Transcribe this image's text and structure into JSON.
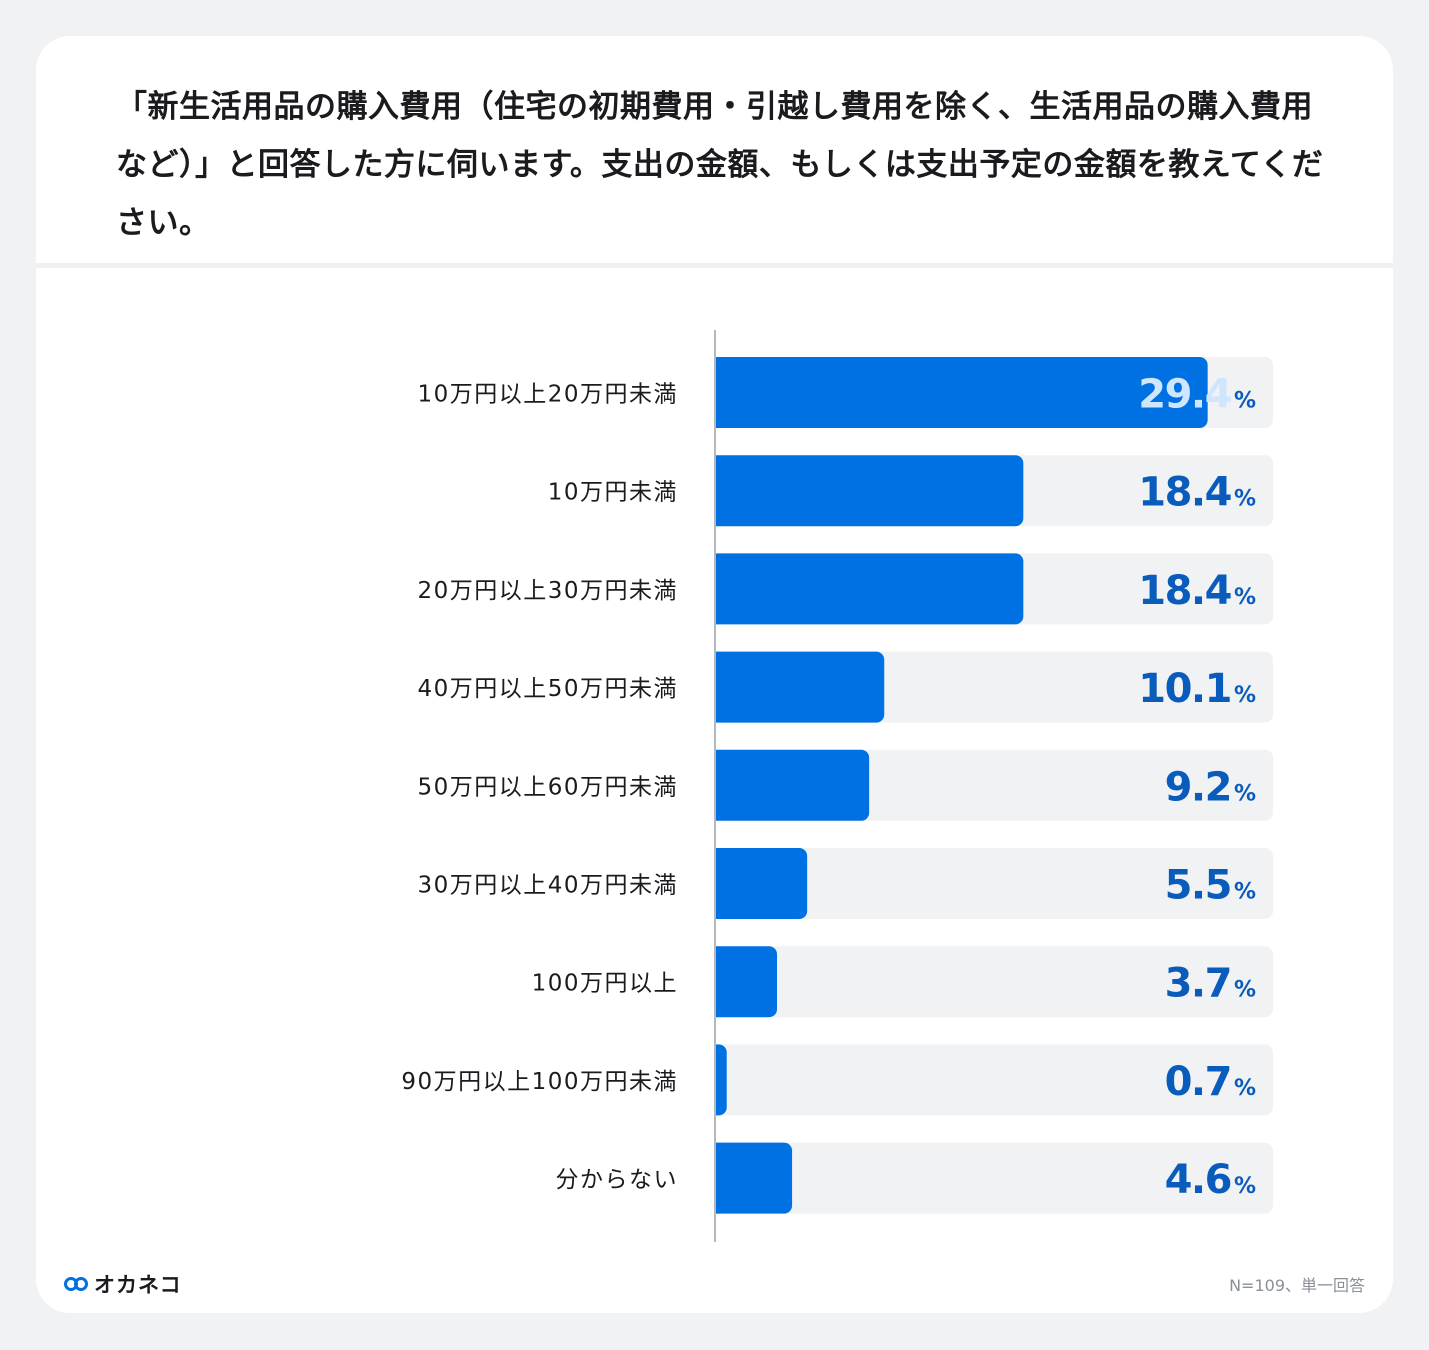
{
  "question": "「新生活用品の購入費用（住宅の初期費用・引越し費用を除く、生活用品の購入費用など）」と回答した方に伺います。支出の金額、もしくは支出予定の金額を教えてください。",
  "chart_data": {
    "type": "bar",
    "orientation": "horizontal",
    "categories": [
      "10万円以上20万円未満",
      "10万円未満",
      "20万円以上30万円未満",
      "40万円以上50万円未満",
      "50万円以上60万円未満",
      "30万円以上40万円未満",
      "100万円以上",
      "90万円以上100万円未満",
      "分からない"
    ],
    "values": [
      29.4,
      18.4,
      18.4,
      10.1,
      9.2,
      5.5,
      3.7,
      0.7,
      4.6
    ],
    "value_labels": [
      "29.4",
      "18.4",
      "18.4",
      "10.1",
      "9.2",
      "5.5",
      "3.7",
      "0.7",
      "4.6"
    ],
    "unit": "%",
    "xlim": [
      0,
      33.3
    ],
    "grid": false,
    "bar_color": "#0071e3",
    "track_color": "#f1f2f4",
    "value_color": "#0a5cbc",
    "value_on_bar_color": "#cfe6ff"
  },
  "footer": {
    "brand": "オカネコ",
    "note": "N=109、単一回答"
  },
  "icons": {
    "brand_logo": "okaneko-logo-icon"
  }
}
